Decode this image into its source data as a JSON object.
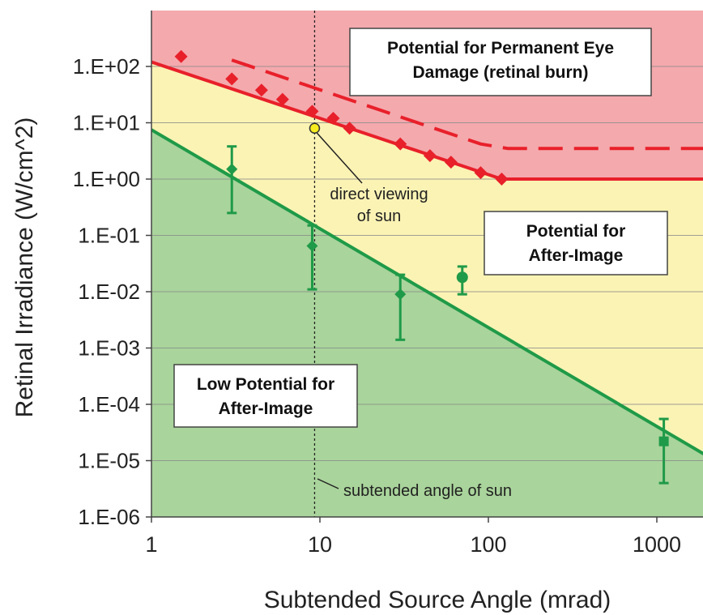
{
  "chart_data": {
    "type": "scatter",
    "title": "",
    "xlabel": "Subtended Source Angle (mrad)",
    "ylabel": "Retinal Irradiance (W/cm^2)",
    "x_scale": "log",
    "y_scale": "log",
    "xlim": [
      1,
      2000
    ],
    "ylim": [
      1e-06,
      1000
    ],
    "grid": "horizontal",
    "x_ticks": [
      1,
      10,
      100,
      1000
    ],
    "x_tick_labels": [
      "1",
      "10",
      "100",
      "1000"
    ],
    "y_ticks": [
      1e-06,
      1e-05,
      0.0001,
      0.001,
      0.01,
      0.1,
      1,
      10,
      100
    ],
    "y_tick_labels": [
      "1.E-06",
      "1.E-05",
      "1.E-04",
      "1.E-03",
      "1.E-02",
      "1.E-01",
      "1.E+00",
      "1.E+01",
      "1.E+02"
    ],
    "colors": {
      "burn_zone": "#f4a9ad",
      "after_image_zone": "#fbf3b4",
      "low_zone": "#a9d49b",
      "red": "#e8202a",
      "green": "#1f9a48",
      "sun_marker": "#f6ec1f"
    },
    "regions": [
      {
        "label": "Potential for Permanent Eye Damage (retinal burn)",
        "lines": [
          "Potential for Permanent Eye",
          "Damage (retinal burn)"
        ]
      },
      {
        "label": "Potential for After-Image",
        "lines": [
          "Potential for",
          "After-Image"
        ]
      },
      {
        "label": "Low Potential for After-Image",
        "lines": [
          "Low Potential for",
          "After-Image"
        ]
      }
    ],
    "lines": [
      {
        "style": "solid",
        "color": "red",
        "x": [
          1,
          120,
          2000
        ],
        "y": [
          120,
          1,
          1
        ]
      },
      {
        "style": "dashed",
        "color": "red",
        "x": [
          3,
          90,
          130,
          2000
        ],
        "y": [
          130,
          4.2,
          3.5,
          3.5
        ]
      },
      {
        "style": "solid",
        "color": "green",
        "x": [
          1,
          2000
        ],
        "y": [
          7.5,
          1.2e-05
        ]
      }
    ],
    "red_points": {
      "marker": "diamond",
      "x": [
        1.5,
        3,
        4.5,
        6,
        9,
        12,
        15,
        30,
        45,
        60,
        90,
        120
      ],
      "y": [
        150,
        60,
        38,
        26,
        16,
        12,
        8,
        4.2,
        2.6,
        2,
        1.3,
        1
      ]
    },
    "green_points": [
      {
        "marker": "diamond",
        "x": 3,
        "y": 1.5,
        "y_low": 0.25,
        "y_high": 3.8
      },
      {
        "marker": "diamond",
        "x": 9,
        "y": 0.065,
        "y_low": 0.011,
        "y_high": 0.15
      },
      {
        "marker": "diamond",
        "x": 30,
        "y": 0.009,
        "y_low": 0.0014,
        "y_high": 0.02
      },
      {
        "marker": "circle",
        "x": 70,
        "y": 0.018,
        "y_low": 0.009,
        "y_high": 0.028
      },
      {
        "marker": "square",
        "x": 1100,
        "y": 2.2e-05,
        "y_low": 4e-06,
        "y_high": 5.5e-05
      }
    ],
    "sun_point": {
      "x": 9.3,
      "y": 8
    },
    "sun_angle_line_x": 9.3,
    "annotations": [
      {
        "label": "direct viewing of sun",
        "lines": [
          "direct viewing",
          "of sun"
        ]
      },
      {
        "label": "subtended angle of sun",
        "lines": [
          "subtended angle of sun"
        ]
      }
    ]
  }
}
